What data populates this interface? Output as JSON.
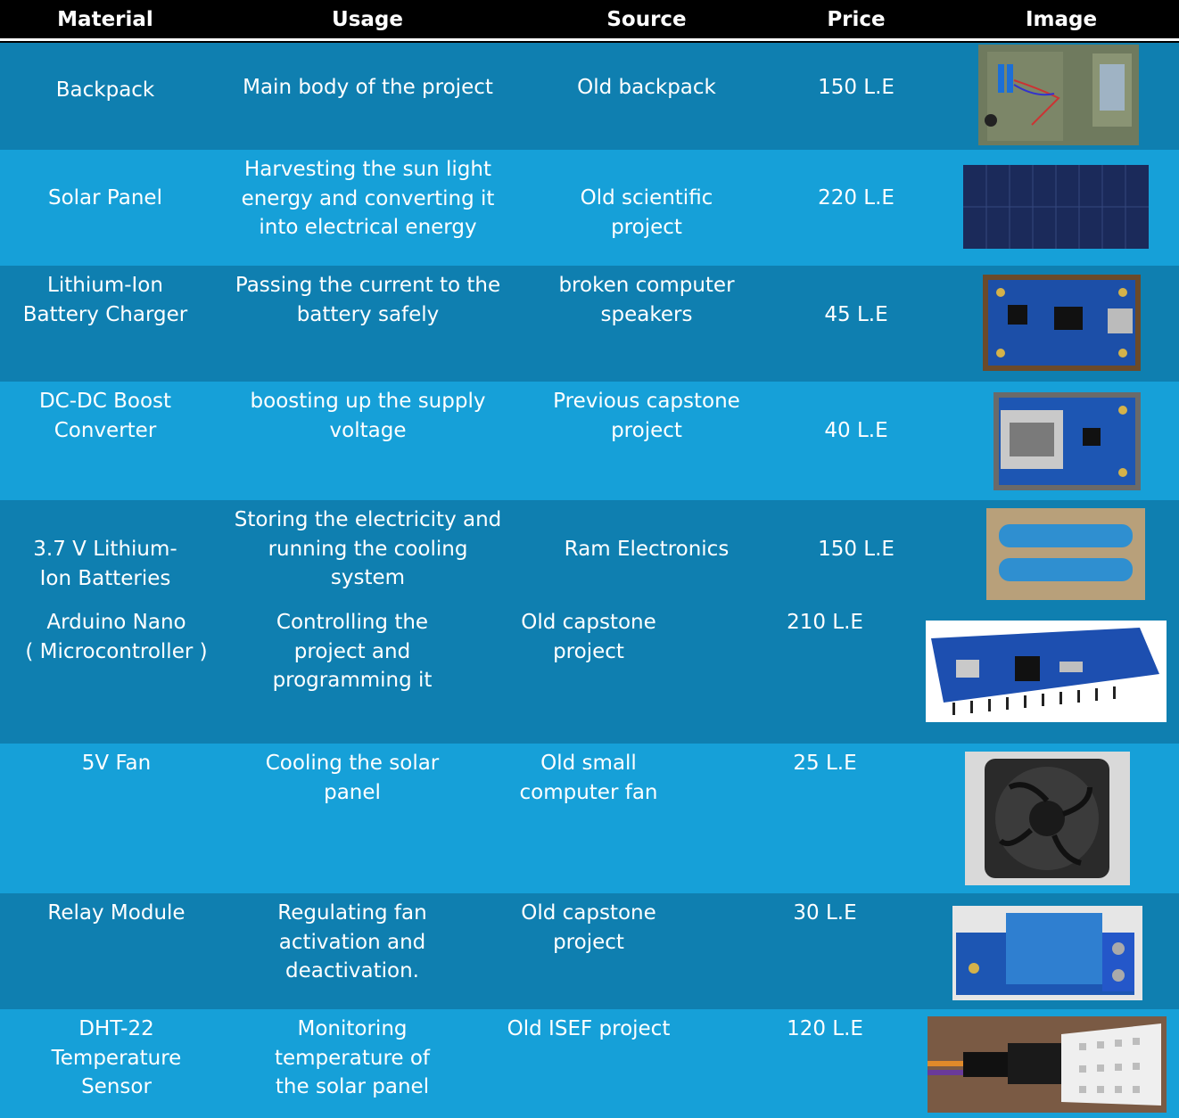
{
  "colors": {
    "dark_row": "#0f7fb0",
    "light_row": "#16a0d8",
    "header_bg": "#000000",
    "text": "#ffffff"
  },
  "header": {
    "material": "Material",
    "usage": "Usage",
    "source": "Source",
    "price": "Price",
    "image": "Image"
  },
  "rows": [
    {
      "material": "Backpack",
      "usage": "Main body of the project",
      "source": "Old backpack",
      "price": "150 L.E",
      "image_icon": "backpack-photo"
    },
    {
      "material": "Solar Panel",
      "usage": "Harvesting the sun light\nenergy and converting it\ninto electrical energy",
      "source": "Old scientific\nproject",
      "price": "220 L.E",
      "image_icon": "solar-panel-photo"
    },
    {
      "material": "Lithium-Ion\nBattery Charger",
      "usage": "Passing the current to the\nbattery safely",
      "source": "broken computer\nspeakers",
      "price": "45 L.E",
      "image_icon": "charger-board-photo"
    },
    {
      "material": "DC-DC Boost\nConverter",
      "usage": "boosting up the supply\nvoltage",
      "source": "Previous  capstone\nproject",
      "price": "40 L.E",
      "image_icon": "boost-converter-photo"
    },
    {
      "material": "3.7 V Lithium-\nIon Batteries",
      "usage": "Storing the electricity and\nrunning the cooling\nsystem",
      "source": "Ram Electronics",
      "price": "150 L.E",
      "image_icon": "batteries-photo"
    },
    {
      "material": "Arduino Nano\n( Microcontroller )",
      "usage": "Controlling the\nproject and\nprogramming it",
      "source": "Old capstone\nproject",
      "price": "210 L.E",
      "image_icon": "arduino-nano-photo"
    },
    {
      "material": "5V Fan",
      "usage": "Cooling the solar\npanel",
      "source": "Old small\ncomputer fan",
      "price": "25 L.E",
      "image_icon": "fan-photo"
    },
    {
      "material": "Relay Module",
      "usage": "Regulating fan\nactivation and\ndeactivation.",
      "source": "Old capstone\nproject",
      "price": "30 L.E",
      "image_icon": "relay-module-photo"
    },
    {
      "material": "DHT-22\nTemperature\nSensor",
      "usage": "Monitoring\ntemperature of\nthe solar panel",
      "source": "Old ISEF project",
      "price": "120 L.E",
      "image_icon": "dht22-sensor-photo"
    }
  ]
}
